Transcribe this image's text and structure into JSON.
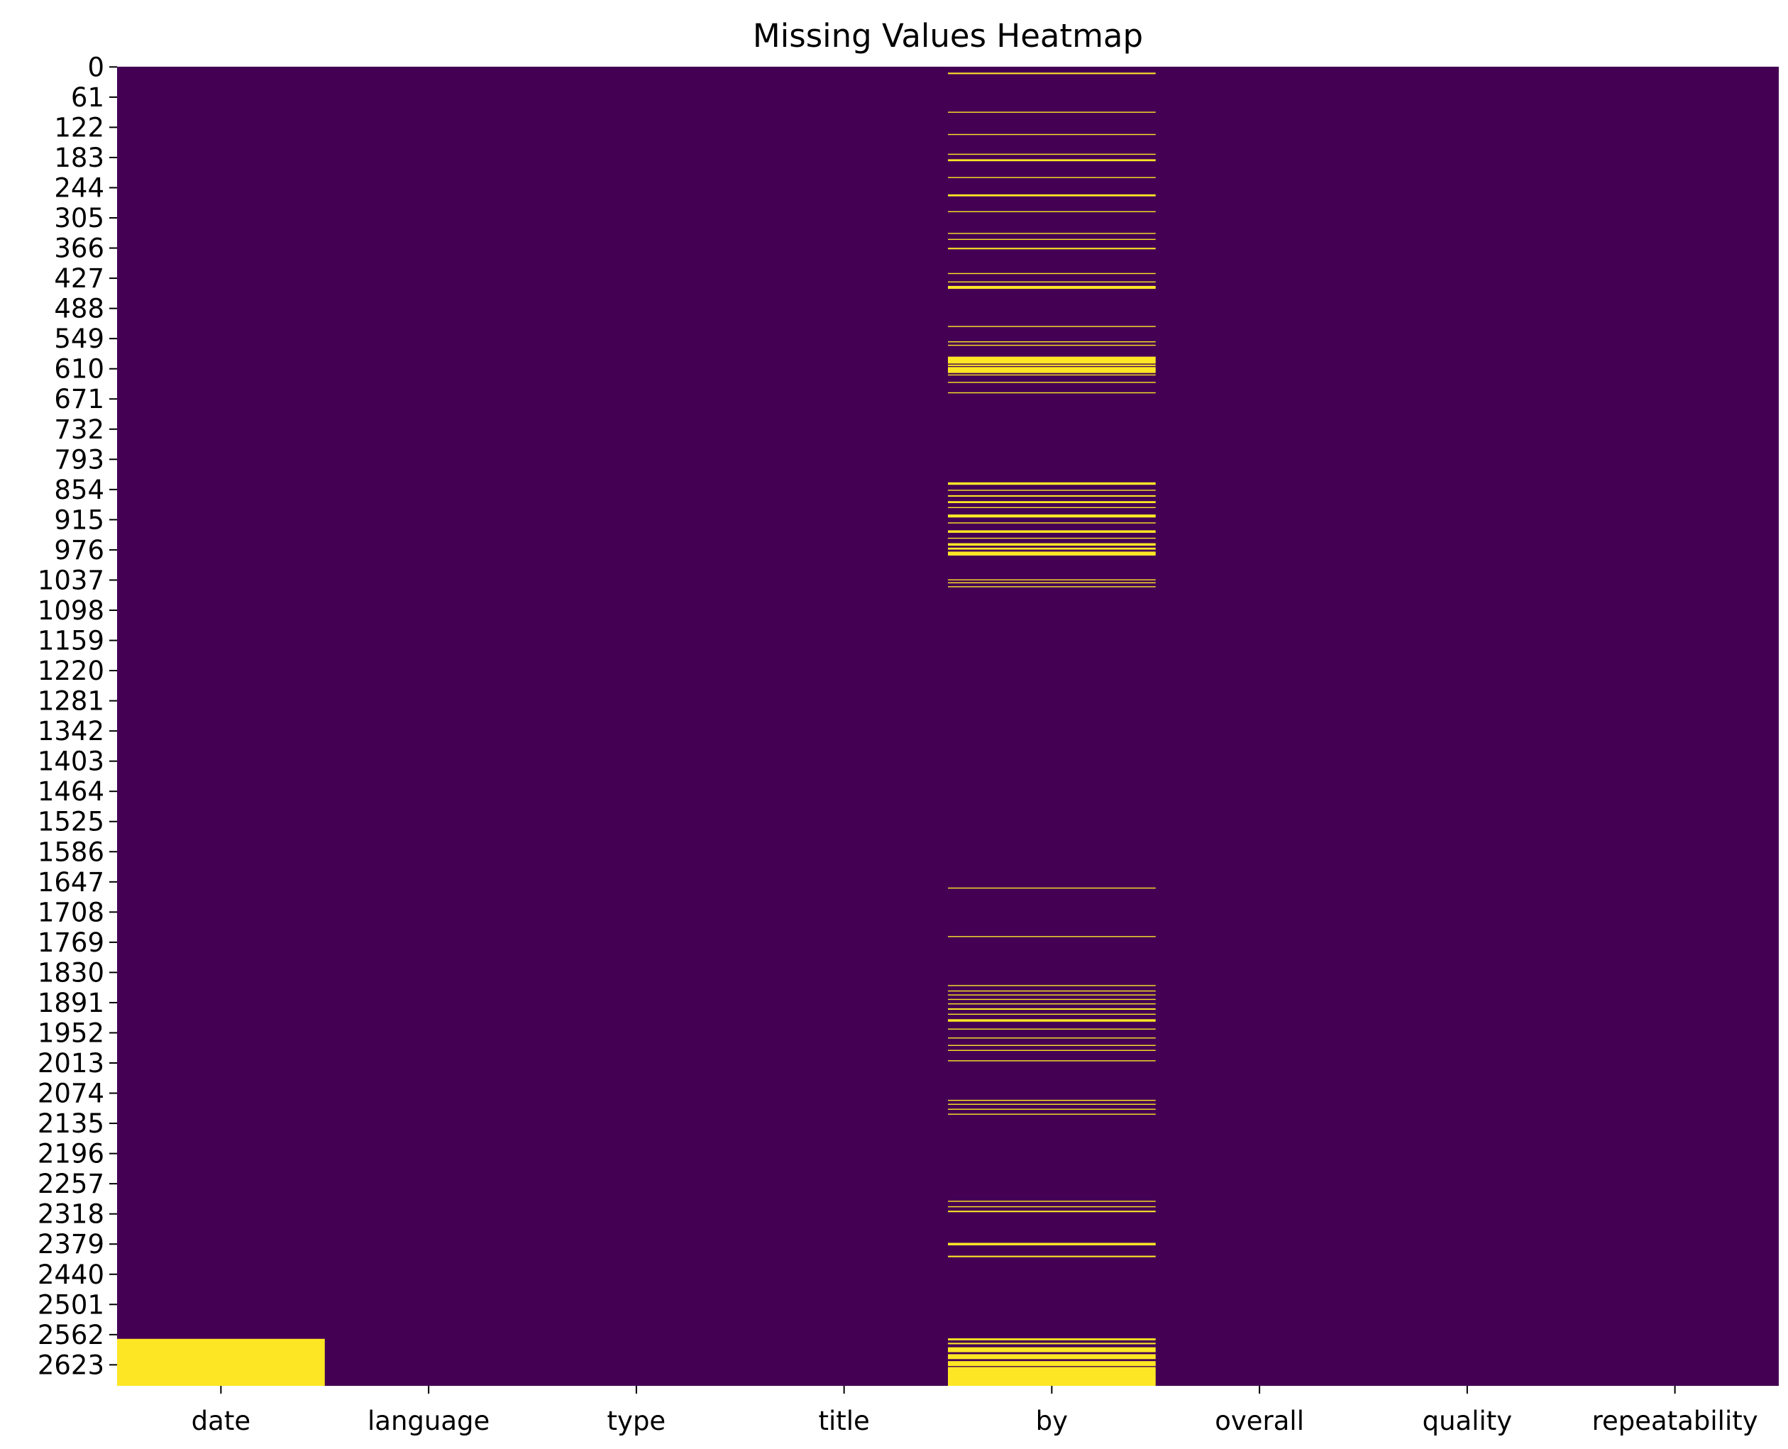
{
  "chart_data": {
    "type": "heatmap",
    "title": "Missing Values Heatmap",
    "xlabel": "",
    "ylabel": "",
    "columns": [
      "date",
      "language",
      "type",
      "title",
      "by",
      "overall",
      "quality",
      "repeatability"
    ],
    "row_ticks": [
      "0",
      "61",
      "122",
      "183",
      "244",
      "305",
      "366",
      "427",
      "488",
      "549",
      "610",
      "671",
      "732",
      "793",
      "854",
      "915",
      "976",
      "1037",
      "1098",
      "1159",
      "1220",
      "1281",
      "1342",
      "1403",
      "1464",
      "1525",
      "1586",
      "1647",
      "1708",
      "1769",
      "1830",
      "1891",
      "1952",
      "2013",
      "2074",
      "2135",
      "2196",
      "2257",
      "2318",
      "2379",
      "2440",
      "2501",
      "2562",
      "2623"
    ],
    "n_rows": 2666,
    "colorbar": false,
    "colors": {
      "present": "#440154",
      "missing": "#fde725"
    },
    "missing_ranges": {
      "date": [
        [
          2571,
          2666
        ]
      ],
      "language": [],
      "type": [],
      "title": [],
      "overall": [],
      "quality": [],
      "repeatability": [],
      "by": [
        [
          12,
          15
        ],
        [
          91,
          93
        ],
        [
          136,
          137
        ],
        [
          176,
          177
        ],
        [
          187,
          191
        ],
        [
          223,
          224
        ],
        [
          258,
          262
        ],
        [
          292,
          293
        ],
        [
          336,
          338
        ],
        [
          348,
          349
        ],
        [
          366,
          369
        ],
        [
          417,
          419
        ],
        [
          434,
          435
        ],
        [
          443,
          449
        ],
        [
          524,
          525
        ],
        [
          555,
          556
        ],
        [
          562,
          563
        ],
        [
          586,
          600
        ],
        [
          602,
          605
        ],
        [
          607,
          619
        ],
        [
          622,
          623
        ],
        [
          637,
          638
        ],
        [
          658,
          660
        ],
        [
          840,
          845
        ],
        [
          855,
          856
        ],
        [
          866,
          869
        ],
        [
          878,
          882
        ],
        [
          890,
          891
        ],
        [
          905,
          911
        ],
        [
          921,
          923
        ],
        [
          937,
          942
        ],
        [
          952,
          953
        ],
        [
          963,
          968
        ],
        [
          972,
          976
        ],
        [
          980,
          988
        ],
        [
          1036,
          1038
        ],
        [
          1042,
          1043
        ],
        [
          1050,
          1052
        ],
        [
          1659,
          1661
        ],
        [
          1757,
          1759
        ],
        [
          1856,
          1858
        ],
        [
          1867,
          1868
        ],
        [
          1875,
          1877
        ],
        [
          1884,
          1886
        ],
        [
          1893,
          1895
        ],
        [
          1903,
          1906
        ],
        [
          1914,
          1916
        ],
        [
          1925,
          1930
        ],
        [
          1944,
          1946
        ],
        [
          1962,
          1964
        ],
        [
          1977,
          1979
        ],
        [
          1987,
          1989
        ],
        [
          2008,
          2010
        ],
        [
          2088,
          2090
        ],
        [
          2096,
          2098
        ],
        [
          2106,
          2108
        ],
        [
          2116,
          2118
        ],
        [
          2292,
          2294
        ],
        [
          2303,
          2305
        ],
        [
          2312,
          2315
        ],
        [
          2377,
          2382
        ],
        [
          2403,
          2406
        ],
        [
          2570,
          2574
        ],
        [
          2579,
          2582
        ],
        [
          2588,
          2598
        ],
        [
          2602,
          2612
        ],
        [
          2616,
          2626
        ],
        [
          2628,
          2666
        ]
      ]
    }
  }
}
